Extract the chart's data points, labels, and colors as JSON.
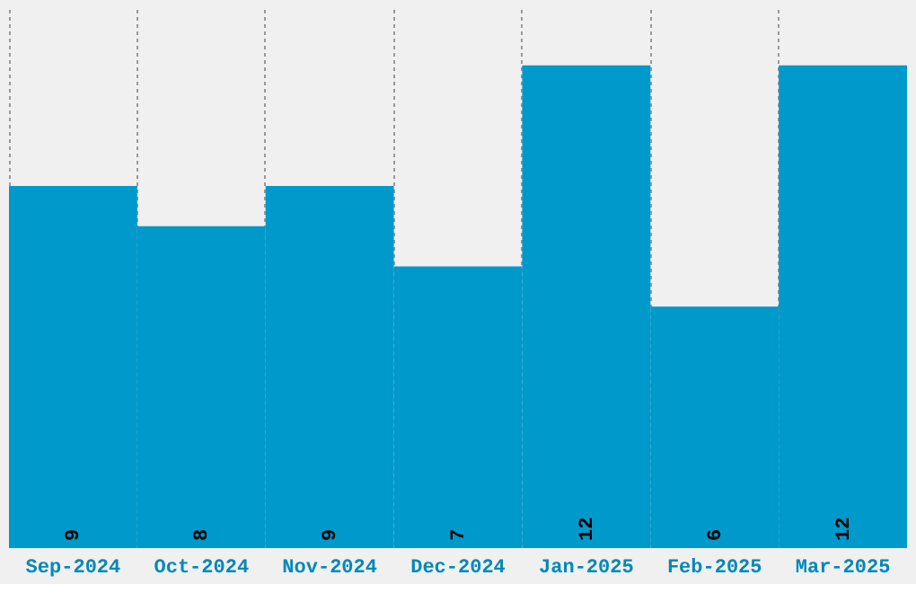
{
  "chart_data": {
    "type": "bar",
    "categories": [
      "Sep-2024",
      "Oct-2024",
      "Nov-2024",
      "Dec-2024",
      "Jan-2025",
      "Feb-2025",
      "Mar-2025"
    ],
    "values": [
      9,
      8,
      9,
      7,
      12,
      6,
      12
    ],
    "color": "#0099cc",
    "data_labels": true,
    "ylim": [
      0,
      13.4
    ],
    "grid": "x",
    "tick_labels": "x"
  }
}
